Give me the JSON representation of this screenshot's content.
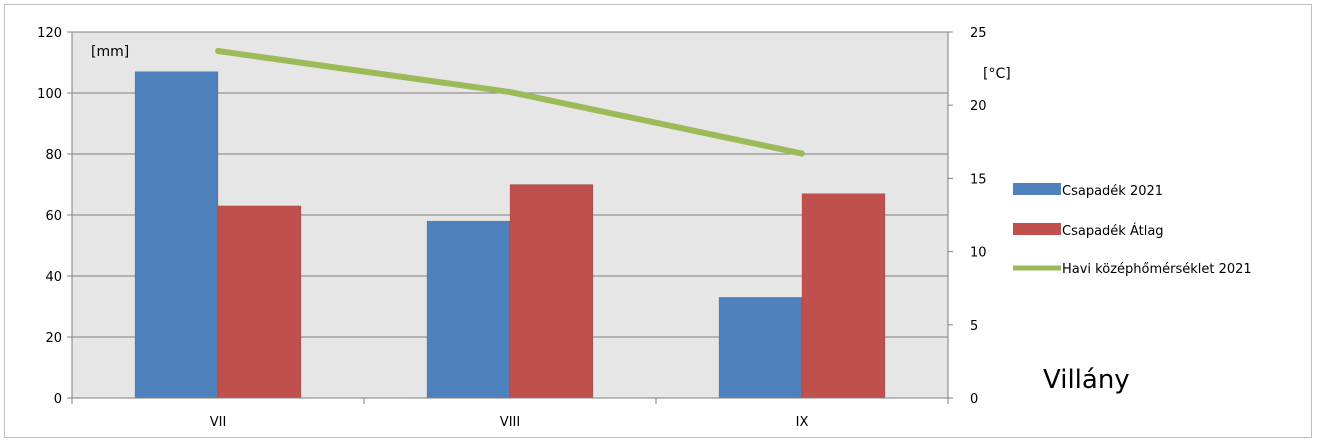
{
  "chart_data": {
    "type": "bar",
    "categories": [
      "VII",
      "VIII",
      "IX"
    ],
    "series": [
      {
        "name": "Csapadék 2021",
        "type": "bar",
        "axis": "left",
        "color": "#4f81bd",
        "values": [
          107,
          58,
          33
        ]
      },
      {
        "name": "Csapadék Átlag",
        "type": "bar",
        "axis": "left",
        "color": "#c0504d",
        "values": [
          63,
          70,
          67
        ]
      },
      {
        "name": "Havi középhőmérséklet 2021",
        "type": "line",
        "axis": "right",
        "color": "#9bbb59",
        "values": [
          23.7,
          20.9,
          16.7
        ]
      }
    ],
    "y_left": {
      "label": "[mm]",
      "range": [
        0,
        120
      ],
      "ticks": [
        0,
        20,
        40,
        60,
        80,
        100,
        120
      ]
    },
    "y_right": {
      "label": "[°C]",
      "range": [
        0,
        25
      ],
      "ticks": [
        0,
        5,
        10,
        15,
        20,
        25
      ]
    },
    "annotation": "Villány",
    "grid": true,
    "legend_position": "right"
  }
}
